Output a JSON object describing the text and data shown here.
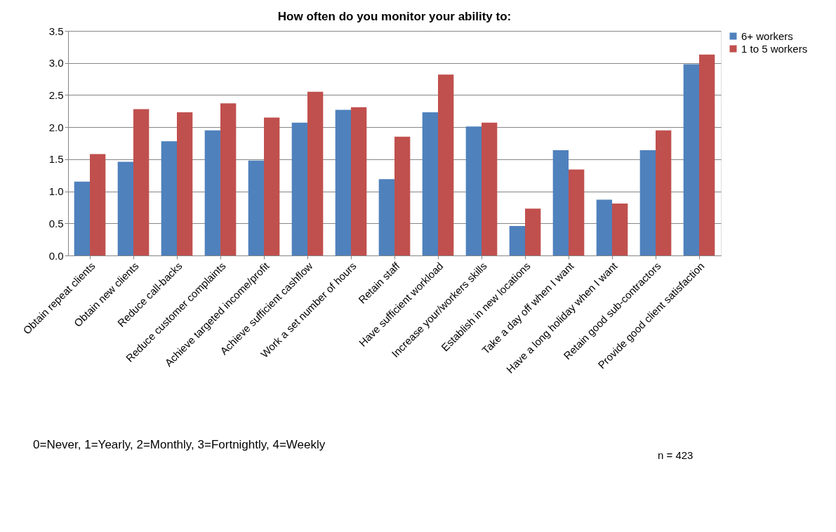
{
  "chart_data": {
    "type": "bar",
    "title": "How often do you monitor your ability to:",
    "categories": [
      "Obtain repeat clients",
      "Obtain new clients",
      "Reduce call-backs",
      "Reduce customer complaints",
      "Achieve targeted income/profit",
      "Achieve sufficient cashflow",
      "Work a set number of hours",
      "Retain staff",
      "Have sufficient workload",
      "Increase your/workers skills",
      "Establish in new locations",
      "Take a day off when I want",
      "Have a long holiday when I want",
      "Retain good sub-contractors",
      "Provide  good  client satisfaction"
    ],
    "series": [
      {
        "name": "6+ workers",
        "color": "#4f81bd",
        "values": [
          1.15,
          1.46,
          1.78,
          1.95,
          1.48,
          2.07,
          2.27,
          1.19,
          2.23,
          2.01,
          0.46,
          1.64,
          0.87,
          1.64,
          2.98
        ]
      },
      {
        "name": "1 to 5 workers",
        "color": "#c0504d",
        "values": [
          1.58,
          2.28,
          2.23,
          2.37,
          2.15,
          2.55,
          2.31,
          1.85,
          2.82,
          2.07,
          0.73,
          1.34,
          0.81,
          1.95,
          3.13
        ]
      }
    ],
    "ylim": [
      0,
      3.5
    ],
    "yticks": [
      {
        "value": 0,
        "label": "0.0"
      },
      {
        "value": 0.5,
        "label": "0.5"
      },
      {
        "value": 1,
        "label": "1.0"
      },
      {
        "value": 1.5,
        "label": "1.5"
      },
      {
        "value": 2,
        "label": "2.0"
      },
      {
        "value": 2.5,
        "label": "2.5"
      },
      {
        "value": 3,
        "label": "3.0"
      },
      {
        "value": 3.5,
        "label": "3.5"
      }
    ],
    "grid": "y",
    "legend": "right",
    "annotations": [
      "0=Never, 1=Yearly, 2=Monthly, 3=Fortnightly, 4=Weekly",
      "n = 423"
    ]
  }
}
